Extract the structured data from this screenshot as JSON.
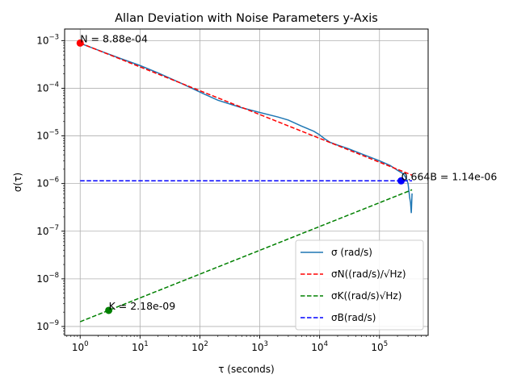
{
  "chart_data": {
    "type": "line",
    "title": "Allan Deviation with Noise Parameters y-Axis",
    "xlabel": "τ (seconds)",
    "ylabel": "σ(τ)",
    "xscale": "log",
    "yscale": "log",
    "xlim": [
      0.55,
      650000
    ],
    "ylim": [
      6.5e-10,
      0.00175
    ],
    "grid": true,
    "legend_position": "lower right",
    "x_ticks": [
      {
        "value": 1,
        "base": "10",
        "exp": "0"
      },
      {
        "value": 10,
        "base": "10",
        "exp": "1"
      },
      {
        "value": 100,
        "base": "10",
        "exp": "2"
      },
      {
        "value": 1000,
        "base": "10",
        "exp": "3"
      },
      {
        "value": 10000,
        "base": "10",
        "exp": "4"
      },
      {
        "value": 100000,
        "base": "10",
        "exp": "5"
      }
    ],
    "y_ticks": [
      {
        "value": 1e-09,
        "base": "10",
        "exp": "−9"
      },
      {
        "value": 1e-08,
        "base": "10",
        "exp": "−8"
      },
      {
        "value": 1e-07,
        "base": "10",
        "exp": "−7"
      },
      {
        "value": 1e-06,
        "base": "10",
        "exp": "−6"
      },
      {
        "value": 1e-05,
        "base": "10",
        "exp": "−5"
      },
      {
        "value": 0.0001,
        "base": "10",
        "exp": "−4"
      },
      {
        "value": 0.001,
        "base": "10",
        "exp": "−3"
      }
    ],
    "series": [
      {
        "name": "σ (rad/s)",
        "style": "solid",
        "color": "#1f77b4",
        "x": [
          1,
          2,
          5,
          10,
          20,
          50,
          100,
          200,
          500,
          1000,
          2000,
          3000,
          5000,
          8000,
          10000,
          12000,
          15000,
          20000,
          30000,
          50000,
          100000,
          150000,
          200000,
          250000,
          280000,
          300000,
          310000,
          320000,
          330000,
          340000,
          350000
        ],
        "y": [
          0.00088,
          0.00063,
          0.00041,
          0.0003,
          0.00021,
          0.000125,
          8.3e-05,
          5.6e-05,
          3.9e-05,
          3.1e-05,
          2.5e-05,
          2.15e-05,
          1.6e-05,
          1.25e-05,
          1.05e-05,
          8.8e-06,
          7.3e-06,
          6.4e-06,
          5.4e-06,
          4.2e-06,
          3e-06,
          2.4e-06,
          1.9e-06,
          1.6e-06,
          1.3e-06,
          1e-06,
          7e-07,
          5e-07,
          4e-07,
          2.4e-07,
          6.2e-07
        ]
      },
      {
        "name": "σ_N((rad/s)/√Hz)",
        "style": "dashed",
        "color": "#ff0000",
        "x": [
          1,
          350000
        ],
        "y": [
          0.000888,
          1.5e-06
        ]
      },
      {
        "name": "σ_K((rad/s)√Hz)",
        "style": "dashed",
        "color": "#008000",
        "x": [
          1,
          350000
        ],
        "y": [
          1.26e-09,
          7.4e-07
        ]
      },
      {
        "name": "σ_B(rad/s)",
        "style": "dashed",
        "color": "#0000ff",
        "x": [
          1,
          350000
        ],
        "y": [
          1.14e-06,
          1.14e-06
        ]
      }
    ],
    "points": [
      {
        "x": 1,
        "y": 0.000888,
        "color": "#ff0000",
        "label": "N = 8.88e-04"
      },
      {
        "x": 3,
        "y": 2.18e-09,
        "color": "#008000",
        "label": "K = 2.18e-09"
      },
      {
        "x": 230000,
        "y": 1.14e-06,
        "color": "#0000ff",
        "label": "0.664B = 1.14e-06"
      }
    ],
    "legend": [
      {
        "text": "σ (rad/s)",
        "color": "#1f77b4",
        "style": "solid"
      },
      {
        "text": "σN((rad/s)/√Hz)",
        "color": "#ff0000",
        "style": "dashed"
      },
      {
        "text": "σK((rad/s)√Hz)",
        "color": "#008000",
        "style": "dashed"
      },
      {
        "text": "σB(rad/s)",
        "color": "#0000ff",
        "style": "dashed"
      }
    ]
  }
}
